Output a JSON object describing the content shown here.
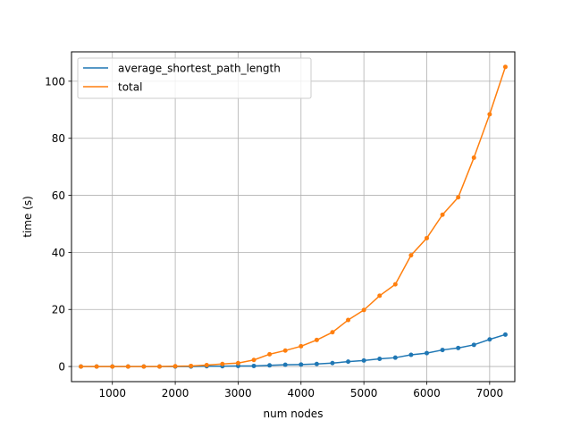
{
  "chart_data": {
    "type": "line",
    "xlabel": "num nodes",
    "ylabel": "time (s)",
    "xlim": [
      350,
      7400
    ],
    "ylim": [
      -5.3,
      110.3
    ],
    "x_ticks": [
      1000,
      2000,
      3000,
      4000,
      5000,
      6000,
      7000
    ],
    "y_ticks": [
      0,
      20,
      40,
      60,
      80,
      100
    ],
    "grid": true,
    "legend_position": "top-left",
    "x": [
      500,
      750,
      1000,
      1250,
      1500,
      1750,
      2000,
      2250,
      2500,
      2750,
      3000,
      3250,
      3500,
      3750,
      4000,
      4250,
      4500,
      4750,
      5000,
      5250,
      5500,
      5750,
      6000,
      6250,
      6500,
      6750,
      7000,
      7250
    ],
    "series": [
      {
        "name": "average_shortest_path_length",
        "color": "#1f77b4",
        "values": [
          0.0,
          0.0,
          0.0,
          0.0,
          0.0,
          0.0,
          0.0,
          0.0,
          0.1,
          0.1,
          0.2,
          0.2,
          0.4,
          0.6,
          0.7,
          0.9,
          1.2,
          1.7,
          2.1,
          2.7,
          3.1,
          4.1,
          4.7,
          5.8,
          6.5,
          7.6,
          9.5,
          11.2
        ]
      },
      {
        "name": "total",
        "color": "#ff7f0e",
        "values": [
          0.0,
          0.0,
          0.0,
          0.0,
          0.0,
          0.0,
          0.1,
          0.2,
          0.5,
          0.9,
          1.2,
          2.3,
          4.3,
          5.6,
          7.1,
          9.3,
          12.0,
          16.3,
          19.8,
          24.8,
          28.8,
          39.0,
          45.0,
          53.2,
          59.3,
          73.2,
          88.4,
          105.0
        ]
      }
    ]
  }
}
